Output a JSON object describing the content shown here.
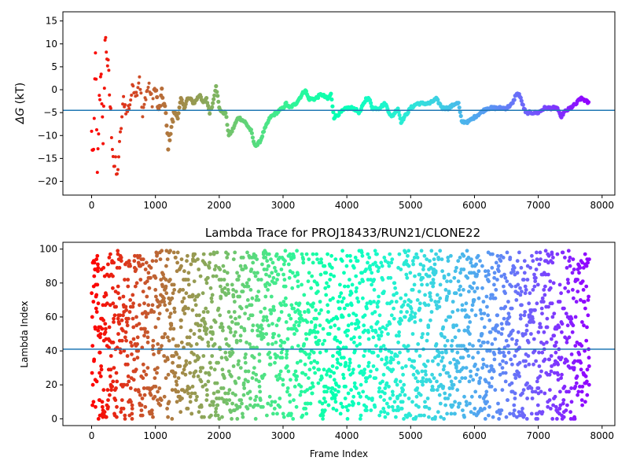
{
  "chart_data": [
    {
      "type": "scatter",
      "title": "",
      "xlabel": "",
      "ylabel": "ΔG (kT)",
      "ylabel_symbol": "ΔG",
      "ylabel_unit": " (kT)",
      "xlim": [
        -450,
        8200
      ],
      "ylim": [
        -23,
        17
      ],
      "xticks": [
        0,
        1000,
        2000,
        3000,
        4000,
        5000,
        6000,
        7000,
        8000
      ],
      "yticks": [
        -20,
        -15,
        -10,
        -5,
        0,
        5,
        10,
        15
      ],
      "hline": -4.5,
      "hline_color": "#1f77b4",
      "colormap": "rainbow (red at frame 0 to purple at final frame)",
      "grid": false,
      "series": [
        {
          "x": [
            0,
            30,
            60,
            90,
            120,
            150,
            180,
            210,
            240,
            270,
            300,
            350,
            400,
            450,
            500,
            550,
            600,
            650,
            700,
            750,
            800,
            850,
            900,
            950,
            1000,
            1050,
            1100,
            1150,
            1200,
            1250,
            1300,
            1350,
            1400,
            1450,
            1500,
            1550,
            1600,
            1650,
            1700,
            1750,
            1800,
            1850,
            1900,
            1950,
            2000,
            2050,
            2100,
            2150,
            2200,
            2300,
            2400,
            2500,
            2550,
            2600,
            2650,
            2700,
            2800,
            2900,
            3000,
            3050,
            3100,
            3200,
            3300,
            3350,
            3400,
            3500,
            3600,
            3700,
            3750,
            3800,
            3900,
            4000,
            4100,
            4200,
            4300,
            4350,
            4400,
            4500,
            4600,
            4700,
            4800,
            4850,
            4900,
            5000,
            5100,
            5200,
            5300,
            5400,
            5500,
            5600,
            5700,
            5750,
            5800,
            5900,
            6000,
            6100,
            6200,
            6300,
            6400,
            6500,
            6600,
            6650,
            6700,
            6800,
            6900,
            7000,
            7100,
            7200,
            7300,
            7350,
            7400,
            7500,
            7600,
            7650,
            7700,
            7800
          ],
          "y": [
            -10,
            -16,
            10,
            -20,
            -3,
            5,
            -14,
            11,
            8,
            2,
            -6,
            -16,
            -19,
            -10,
            -2,
            -5,
            -3,
            1,
            -1,
            3,
            -6,
            -1,
            1,
            -3,
            1,
            -5,
            -1,
            -4,
            -12,
            -8,
            -5,
            -6,
            -2,
            -4,
            -2,
            -2,
            -3,
            -2,
            -1,
            -3,
            -2,
            -5,
            -3,
            1,
            -4,
            -5,
            -5,
            -10,
            -9,
            -6,
            -7,
            -9,
            -12,
            -12,
            -11,
            -9,
            -6,
            -5,
            -4,
            -3,
            -4,
            -3,
            -1,
            0,
            -2,
            -2,
            -1,
            -2,
            -1,
            -6,
            -5,
            -4,
            -4,
            -5,
            -2,
            -2,
            -4,
            -4,
            -3,
            -6,
            -4,
            -7,
            -6,
            -4,
            -3,
            -3,
            -3,
            -2,
            -4,
            -4,
            -3,
            -3,
            -7,
            -7,
            -6,
            -5,
            -4,
            -4,
            -4,
            -4,
            -3,
            -1,
            -1,
            -5,
            -5,
            -5,
            -4,
            -4,
            -4,
            -6,
            -5,
            -4,
            -3,
            -2,
            -2,
            -3
          ]
        }
      ]
    },
    {
      "type": "scatter",
      "title": "Lambda Trace for PROJ18433/RUN21/CLONE22",
      "xlabel": "Frame Index",
      "ylabel": "Lambda Index",
      "xlim": [
        -450,
        8200
      ],
      "ylim": [
        -4,
        104
      ],
      "xticks": [
        0,
        1000,
        2000,
        3000,
        4000,
        5000,
        6000,
        7000,
        8000
      ],
      "yticks": [
        0,
        20,
        40,
        60,
        80,
        100
      ],
      "hline": 41,
      "hline_color": "#1f77b4",
      "colormap": "rainbow (red at frame 0 to purple at final frame)",
      "grid": false,
      "series": [
        {
          "x_range": [
            0,
            7800
          ],
          "y_range": [
            0,
            99
          ],
          "note_points": "dense scatter of lambda index per frame"
        }
      ]
    }
  ]
}
